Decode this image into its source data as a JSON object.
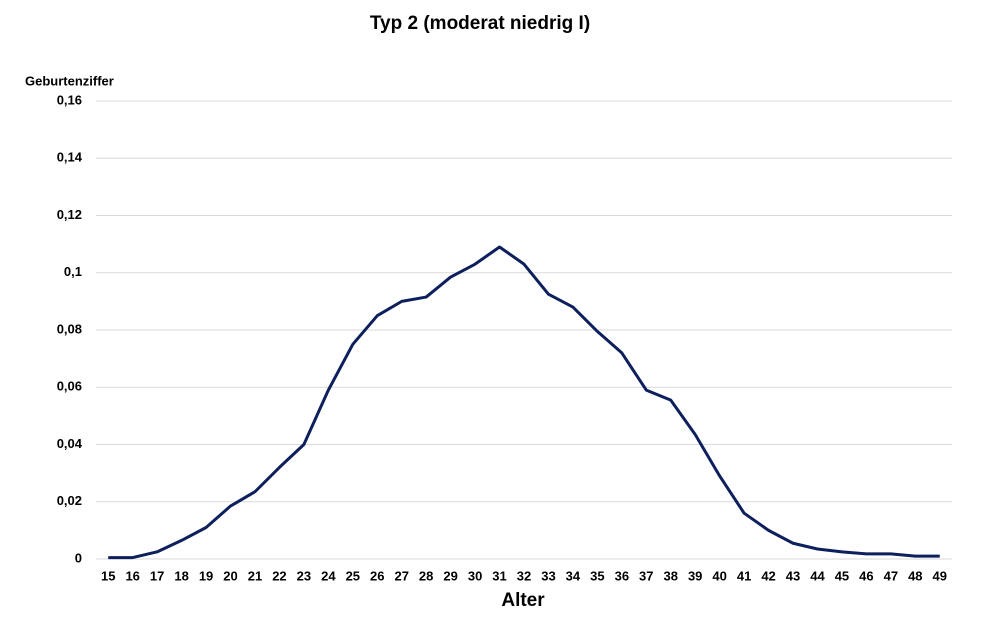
{
  "chart_data": {
    "type": "line",
    "title": "Typ 2 (moderat niedrig I)",
    "y_label": "Geburtenziffer",
    "x_label": "Alter",
    "categories": [
      15,
      16,
      17,
      18,
      19,
      20,
      21,
      22,
      23,
      24,
      25,
      26,
      27,
      28,
      29,
      30,
      31,
      32,
      33,
      34,
      35,
      36,
      37,
      38,
      39,
      40,
      41,
      42,
      43,
      44,
      45,
      46,
      47,
      48,
      49
    ],
    "series": [
      {
        "name": "Typ 2 (moderat niedrig I)",
        "color": "#0d1f5c",
        "values": [
          0.0005,
          0.0005,
          0.0025,
          0.0065,
          0.011,
          0.0185,
          0.0235,
          0.032,
          0.04,
          0.059,
          0.075,
          0.085,
          0.09,
          0.0915,
          0.0985,
          0.103,
          0.109,
          0.103,
          0.0925,
          0.088,
          0.0795,
          0.072,
          0.059,
          0.0555,
          0.0435,
          0.029,
          0.016,
          0.01,
          0.0055,
          0.0035,
          0.0025,
          0.0018,
          0.0018,
          0.001,
          0.001
        ]
      }
    ],
    "ylim": [
      0,
      0.16
    ],
    "yticks": [
      0,
      {
        "value": 0.02,
        "label": "0,02"
      },
      {
        "value": 0.04,
        "label": "0,04"
      },
      {
        "value": 0.06,
        "label": "0,06"
      },
      {
        "value": 0.08,
        "label": "0,08"
      },
      {
        "value": 0.1,
        "label": "0,1"
      },
      {
        "value": 0.12,
        "label": "0,12"
      },
      {
        "value": 0.14,
        "label": "0,14"
      },
      {
        "value": 0.16,
        "label": "0,16"
      }
    ],
    "grid": true
  }
}
